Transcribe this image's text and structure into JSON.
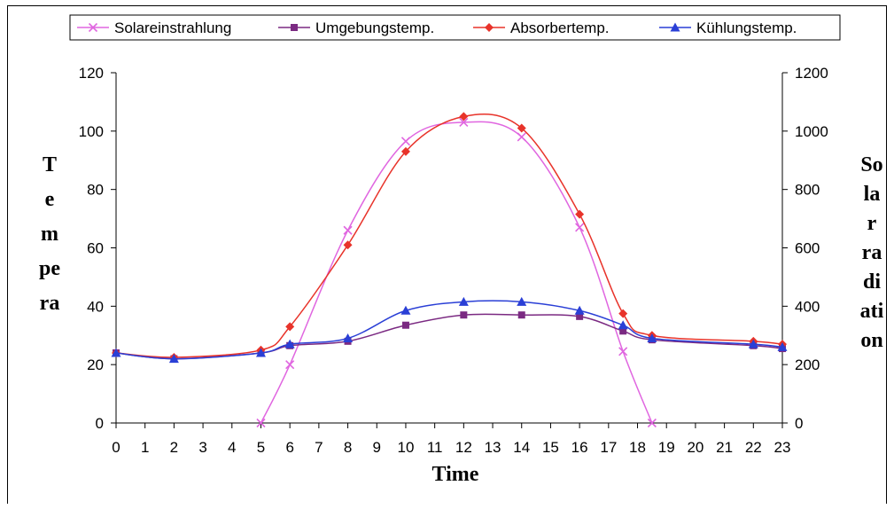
{
  "chart_data": {
    "type": "line",
    "xlabel": "Time",
    "ylabel_lines": [
      "T",
      "e",
      "m",
      "pe",
      "ra"
    ],
    "y2label_lines": [
      "So",
      "la",
      "r",
      "ra",
      "di",
      "ati",
      "on"
    ],
    "x_ticks": [
      0,
      1,
      2,
      3,
      4,
      5,
      6,
      7,
      8,
      9,
      10,
      11,
      12,
      13,
      14,
      15,
      16,
      17,
      18,
      19,
      20,
      21,
      22,
      23
    ],
    "xlim": [
      0,
      23
    ],
    "ylim": [
      0,
      120
    ],
    "y_ticks": [
      0,
      20,
      40,
      60,
      80,
      100,
      120
    ],
    "y2lim": [
      0,
      1200
    ],
    "y2_ticks": [
      0,
      200,
      400,
      600,
      800,
      1000,
      1200
    ],
    "grid": false,
    "legend_position": "top",
    "series": [
      {
        "name": "Solareinstrahlung",
        "axis": "right",
        "color": "#e066e0",
        "marker": "x",
        "x": [
          5,
          6,
          8,
          10,
          12,
          14,
          16,
          17.5,
          18.5
        ],
        "y": [
          0,
          200,
          660,
          965,
          1030,
          980,
          670,
          245,
          0
        ]
      },
      {
        "name": "Umgebungstemp.",
        "axis": "left",
        "color": "#7b2a82",
        "marker": "square",
        "x": [
          0,
          2,
          5,
          6,
          8,
          10,
          12,
          14,
          16,
          17.5,
          18.5,
          22,
          23
        ],
        "y": [
          24,
          22,
          24,
          26.5,
          28,
          33.5,
          37,
          37,
          36.5,
          31.5,
          28.5,
          26.5,
          25.5
        ]
      },
      {
        "name": "Absorbertemp.",
        "axis": "left",
        "color": "#e8332a",
        "marker": "diamond",
        "x": [
          0,
          2,
          5,
          6,
          8,
          10,
          12,
          14,
          16,
          17.5,
          18.5,
          22,
          23
        ],
        "y": [
          24,
          22.5,
          25,
          33,
          61,
          93,
          105,
          101,
          71.5,
          37.5,
          30,
          28,
          27
        ]
      },
      {
        "name": "Kühlungstemp.",
        "axis": "left",
        "color": "#2a3fd6",
        "marker": "triangle",
        "x": [
          0,
          2,
          5,
          6,
          8,
          10,
          12,
          14,
          16,
          17.5,
          18.5,
          22,
          23
        ],
        "y": [
          24,
          22,
          24,
          27,
          29,
          38.5,
          41.5,
          41.5,
          38.5,
          33.5,
          29,
          27,
          26
        ]
      }
    ]
  }
}
